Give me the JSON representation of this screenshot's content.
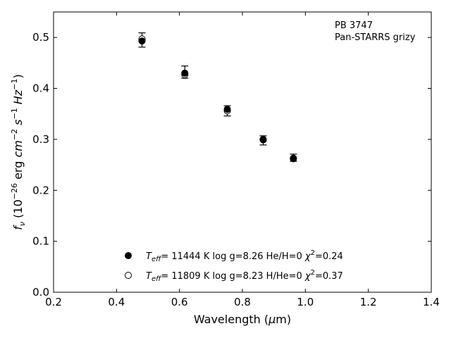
{
  "chart_data": {
    "type": "scatter",
    "xlabel": "Wavelength (μm)",
    "ylabel": "f_ν (10^−26 erg cm^−2 s^−1 Hz^−1)",
    "xlim": [
      0.2,
      1.4
    ],
    "ylim": [
      0.0,
      0.55
    ],
    "xticks": [
      "0.2",
      "0.4",
      "0.6",
      "0.8",
      "1.0",
      "1.2",
      "1.4"
    ],
    "yticks": [
      "0.0",
      "0.1",
      "0.2",
      "0.3",
      "0.4",
      "0.5"
    ],
    "grid": false,
    "annotation": [
      "PB 3747",
      "Pan-STARRS grizy"
    ],
    "observed": {
      "x": [
        0.481,
        0.617,
        0.752,
        0.866,
        0.962
      ],
      "y": [
        0.495,
        0.432,
        0.356,
        0.298,
        0.264
      ],
      "yerr": [
        0.014,
        0.012,
        0.01,
        0.009,
        0.007
      ]
    },
    "series": [
      {
        "name": "T_eff= 11444 K  log g=8.26  He/H=0  χ²=0.24",
        "marker": "filled-circle",
        "x": [
          0.481,
          0.617,
          0.752,
          0.866,
          0.962
        ],
        "y": [
          0.493,
          0.43,
          0.359,
          0.3,
          0.262
        ]
      },
      {
        "name": "T_eff= 11809 K  log g=8.23  H/He=0  χ²=0.37",
        "marker": "open-circle",
        "x": [
          0.481,
          0.617,
          0.752,
          0.866,
          0.962
        ],
        "y": [
          0.497,
          0.427,
          0.356,
          0.299,
          0.263
        ]
      }
    ],
    "legend_position": "bottom-center"
  },
  "legend": [
    {
      "t": "T",
      "sub": "eff",
      "rest": "= 11444 K  log g=8.26  He/H=0  ",
      "chi": "χ",
      "sup": "2",
      "end": "=0.24"
    },
    {
      "t": "T",
      "sub": "eff",
      "rest": "= 11809 K  log g=8.23  H/He=0  ",
      "chi": "χ",
      "sup": "2",
      "end": "=0.37"
    }
  ]
}
